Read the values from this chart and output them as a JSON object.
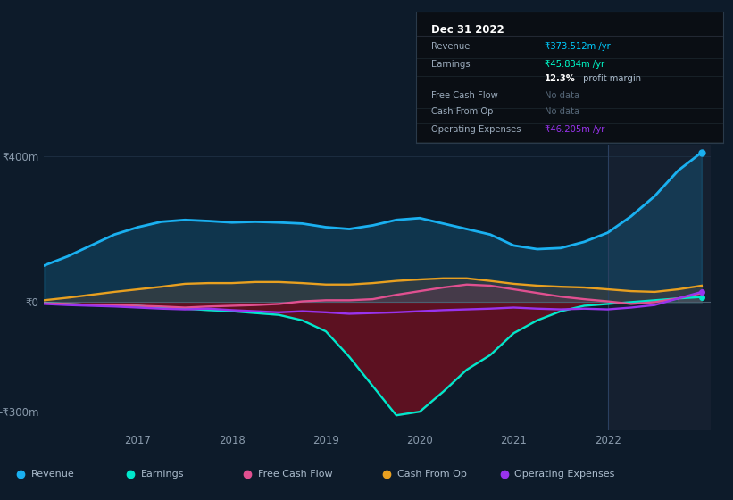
{
  "bg_color": "#0d1b2a",
  "plot_bg_color": "#0d1b2a",
  "ylim": [
    -350,
    430
  ],
  "xlim": [
    2016.0,
    2023.1
  ],
  "yticks": [
    -300,
    0,
    400
  ],
  "ytick_labels": [
    "-₹300m",
    "₹0",
    "₹400m"
  ],
  "xtick_labels": [
    "2017",
    "2018",
    "2019",
    "2020",
    "2021",
    "2022"
  ],
  "xtick_positions": [
    2017,
    2018,
    2019,
    2020,
    2021,
    2022
  ],
  "revenue_color": "#1ab0f0",
  "earnings_color": "#00e8cc",
  "fcf_color": "#e05090",
  "cashfromop_color": "#e8a020",
  "opex_color": "#9933ee",
  "legend_bg": "#111827",
  "revenue_x": [
    2016.0,
    2016.25,
    2016.5,
    2016.75,
    2017.0,
    2017.25,
    2017.5,
    2017.75,
    2018.0,
    2018.25,
    2018.5,
    2018.75,
    2019.0,
    2019.25,
    2019.5,
    2019.75,
    2020.0,
    2020.25,
    2020.5,
    2020.75,
    2021.0,
    2021.25,
    2021.5,
    2021.75,
    2022.0,
    2022.25,
    2022.5,
    2022.75,
    2023.0
  ],
  "revenue_y": [
    100,
    125,
    155,
    185,
    205,
    220,
    225,
    222,
    218,
    220,
    218,
    215,
    205,
    200,
    210,
    225,
    230,
    215,
    200,
    185,
    155,
    145,
    148,
    165,
    190,
    235,
    290,
    360,
    410
  ],
  "earnings_x": [
    2016.0,
    2016.25,
    2016.5,
    2016.75,
    2017.0,
    2017.25,
    2017.5,
    2017.75,
    2018.0,
    2018.25,
    2018.5,
    2018.75,
    2019.0,
    2019.25,
    2019.5,
    2019.75,
    2020.0,
    2020.25,
    2020.5,
    2020.75,
    2021.0,
    2021.25,
    2021.5,
    2021.75,
    2022.0,
    2022.25,
    2022.5,
    2022.75,
    2023.0
  ],
  "earnings_y": [
    -2,
    -5,
    -8,
    -8,
    -10,
    -15,
    -18,
    -22,
    -25,
    -30,
    -35,
    -50,
    -80,
    -150,
    -230,
    -310,
    -300,
    -245,
    -185,
    -145,
    -85,
    -50,
    -25,
    -10,
    -5,
    0,
    5,
    10,
    14
  ],
  "fcf_x": [
    2016.0,
    2016.25,
    2016.5,
    2016.75,
    2017.0,
    2017.25,
    2017.5,
    2017.75,
    2018.0,
    2018.25,
    2018.5,
    2018.75,
    2019.0,
    2019.25,
    2019.5,
    2019.75,
    2020.0,
    2020.25,
    2020.5,
    2020.75,
    2021.0,
    2021.25,
    2021.5,
    2021.75,
    2022.0,
    2022.25,
    2022.5,
    2022.75,
    2023.0
  ],
  "fcf_y": [
    -3,
    -5,
    -8,
    -8,
    -10,
    -12,
    -15,
    -12,
    -10,
    -8,
    -5,
    2,
    5,
    5,
    8,
    20,
    30,
    40,
    48,
    45,
    35,
    25,
    15,
    8,
    2,
    -5,
    0,
    10,
    25
  ],
  "cashfromop_x": [
    2016.0,
    2016.25,
    2016.5,
    2016.75,
    2017.0,
    2017.25,
    2017.5,
    2017.75,
    2018.0,
    2018.25,
    2018.5,
    2018.75,
    2019.0,
    2019.25,
    2019.5,
    2019.75,
    2020.0,
    2020.25,
    2020.5,
    2020.75,
    2021.0,
    2021.25,
    2021.5,
    2021.75,
    2022.0,
    2022.25,
    2022.5,
    2022.75,
    2023.0
  ],
  "cashfromop_y": [
    5,
    12,
    20,
    28,
    35,
    42,
    50,
    52,
    52,
    55,
    55,
    52,
    48,
    48,
    52,
    58,
    62,
    65,
    65,
    58,
    50,
    45,
    42,
    40,
    35,
    30,
    28,
    35,
    45
  ],
  "opex_x": [
    2016.0,
    2016.25,
    2016.5,
    2016.75,
    2017.0,
    2017.25,
    2017.5,
    2017.75,
    2018.0,
    2018.25,
    2018.5,
    2018.75,
    2019.0,
    2019.25,
    2019.5,
    2019.75,
    2020.0,
    2020.25,
    2020.5,
    2020.75,
    2021.0,
    2021.25,
    2021.5,
    2021.75,
    2022.0,
    2022.25,
    2022.5,
    2022.75,
    2023.0
  ],
  "opex_y": [
    -5,
    -8,
    -10,
    -12,
    -15,
    -18,
    -20,
    -18,
    -22,
    -25,
    -28,
    -25,
    -28,
    -32,
    -30,
    -28,
    -25,
    -22,
    -20,
    -18,
    -15,
    -18,
    -20,
    -18,
    -20,
    -15,
    -8,
    10,
    28
  ],
  "tooltip_x": 2022.0,
  "highlight_start": 2022.0,
  "highlight_end": 2023.1
}
